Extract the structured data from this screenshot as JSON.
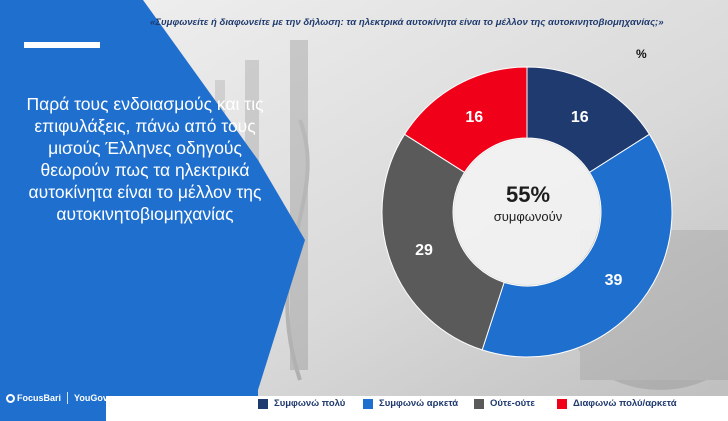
{
  "question": "«Συμφωνείτε ή διαφωνείτε με την δήλωση: τα ηλεκτρικά αυτοκίνητα είναι το μέλλον της αυτοκινητοβιομηχανίας;»",
  "headline": "Παρά τους ενδοιασμούς και τις επιφυλάξεις, πάνω από τους μισούς Έλληνες οδηγούς θεωρούν πως τα ηλεκτρικά αυτοκίνητα είναι το μέλλον της αυτοκινητοβιομηχανίας",
  "unit": "%",
  "center": {
    "value": "55%",
    "label": "συμφωνούν"
  },
  "logos": {
    "left": "FocusBari",
    "right": "YouGov"
  },
  "colors": {
    "accent_blue": "#1f6fce",
    "dark_navy": "#1f3a6e",
    "grey": "#5a5a5a",
    "red": "#f00019"
  },
  "chart_data": {
    "type": "pie",
    "title": "«Συμφωνείτε ή διαφωνείτε με την δήλωση: τα ηλεκτρικά αυτοκίνητα είναι το μέλλον της αυτοκινητοβιομηχανίας;»",
    "unit": "%",
    "donut": true,
    "categories": [
      "Συμφωνώ πολύ",
      "Συμφωνώ αρκετά",
      "Ούτε-ούτε",
      "Διαφωνώ πολύ/αρκετά"
    ],
    "values": [
      16,
      39,
      29,
      16
    ],
    "colors": [
      "#1f3a6e",
      "#1f6fce",
      "#5a5a5a",
      "#f00019"
    ],
    "center_label": "55% συμφωνούν",
    "legend_position": "bottom"
  }
}
